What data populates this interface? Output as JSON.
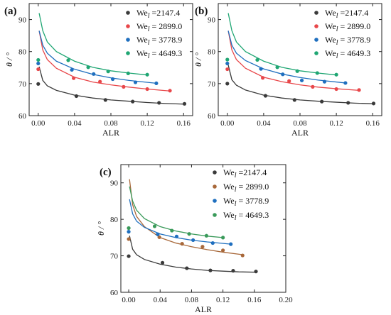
{
  "chart_data": [
    {
      "type": "scatter",
      "panel_label": "(a)",
      "xlabel": "ALR",
      "ylabel": "θ / °",
      "xlim": [
        -0.01,
        0.17
      ],
      "ylim": [
        60,
        95
      ],
      "xticks": [
        "0.00",
        "0.04",
        "0.08",
        "0.12",
        "0.16"
      ],
      "yticks": [
        "60",
        "70",
        "80",
        "90"
      ],
      "xtick_values": [
        0,
        0.04,
        0.08,
        0.12,
        0.16
      ],
      "ytick_values": [
        60,
        70,
        80,
        90
      ],
      "legend_position": "top-right",
      "series": [
        {
          "name": "We_l =2147.4",
          "color": "#3a3a3a",
          "points": [
            [
              0.0,
              69.9
            ],
            [
              0.042,
              66.1
            ],
            [
              0.074,
              64.9
            ],
            [
              0.104,
              64.4
            ],
            [
              0.133,
              64.0
            ],
            [
              0.161,
              63.7
            ]
          ],
          "curve": [
            [
              0.001,
              75.3
            ],
            [
              0.005,
              71.0
            ],
            [
              0.01,
              69.3
            ],
            [
              0.02,
              67.9
            ],
            [
              0.04,
              66.4
            ],
            [
              0.06,
              65.5
            ],
            [
              0.08,
              64.9
            ],
            [
              0.1,
              64.5
            ],
            [
              0.12,
              64.1
            ],
            [
              0.14,
              63.8
            ],
            [
              0.161,
              63.6
            ]
          ]
        },
        {
          "name": "We_l = 2899.0",
          "color": "#e8474a",
          "points": [
            [
              0.0,
              74.5
            ],
            [
              0.039,
              71.7
            ],
            [
              0.068,
              70.6
            ],
            [
              0.094,
              69.0
            ],
            [
              0.12,
              68.3
            ],
            [
              0.145,
              67.8
            ]
          ],
          "curve": [
            [
              0.001,
              86.5
            ],
            [
              0.005,
              80.5
            ],
            [
              0.01,
              77.5
            ],
            [
              0.02,
              74.8
            ],
            [
              0.04,
              72.0
            ],
            [
              0.06,
              70.5
            ],
            [
              0.08,
              69.6
            ],
            [
              0.1,
              68.9
            ],
            [
              0.12,
              68.3
            ],
            [
              0.145,
              67.7
            ]
          ]
        },
        {
          "name": "We_l = 3778.9",
          "color": "#1f6fbf",
          "points": [
            [
              0.0,
              76.3
            ],
            [
              0.037,
              74.3
            ],
            [
              0.061,
              73.0
            ],
            [
              0.082,
              71.4
            ],
            [
              0.107,
              70.4
            ],
            [
              0.13,
              70.1
            ]
          ],
          "curve": [
            [
              0.001,
              86.5
            ],
            [
              0.005,
              82.0
            ],
            [
              0.01,
              79.5
            ],
            [
              0.02,
              77.0
            ],
            [
              0.04,
              74.5
            ],
            [
              0.06,
              72.9
            ],
            [
              0.08,
              71.8
            ],
            [
              0.1,
              71.0
            ],
            [
              0.13,
              70.1
            ]
          ]
        },
        {
          "name": "We_l = 4649.3",
          "color": "#1fa673",
          "points": [
            [
              0.0,
              77.4
            ],
            [
              0.033,
              77.3
            ],
            [
              0.055,
              75.1
            ],
            [
              0.077,
              73.8
            ],
            [
              0.099,
              73.2
            ],
            [
              0.12,
              72.8
            ]
          ],
          "curve": [
            [
              0.001,
              92.0
            ],
            [
              0.005,
              86.5
            ],
            [
              0.01,
              83.0
            ],
            [
              0.02,
              80.0
            ],
            [
              0.04,
              77.0
            ],
            [
              0.06,
              75.1
            ],
            [
              0.08,
              74.0
            ],
            [
              0.1,
              73.3
            ],
            [
              0.12,
              72.7
            ]
          ]
        }
      ]
    },
    {
      "type": "scatter",
      "panel_label": "(b)",
      "xlabel": "ALR",
      "ylabel": "θ / °",
      "xlim": [
        -0.01,
        0.17
      ],
      "ylim": [
        60,
        95
      ],
      "xticks": [
        "0.00",
        "0.04",
        "0.08",
        "0.12",
        "0.16"
      ],
      "yticks": [
        "60",
        "70",
        "80",
        "90"
      ],
      "xtick_values": [
        0,
        0.04,
        0.08,
        0.12,
        0.16
      ],
      "ytick_values": [
        60,
        70,
        80,
        90
      ],
      "legend_position": "top-right",
      "series": [
        {
          "name": "We_l =2147.4",
          "color": "#3a3a3a",
          "points": [
            [
              0.0,
              70.0
            ],
            [
              0.042,
              66.2
            ],
            [
              0.074,
              64.9
            ],
            [
              0.104,
              64.4
            ],
            [
              0.133,
              64.0
            ],
            [
              0.161,
              63.8
            ]
          ],
          "curve": [
            [
              0.001,
              75.8
            ],
            [
              0.005,
              71.2
            ],
            [
              0.01,
              69.5
            ],
            [
              0.02,
              68.0
            ],
            [
              0.04,
              66.4
            ],
            [
              0.06,
              65.5
            ],
            [
              0.08,
              64.9
            ],
            [
              0.1,
              64.5
            ],
            [
              0.12,
              64.2
            ],
            [
              0.14,
              63.9
            ],
            [
              0.161,
              63.7
            ]
          ]
        },
        {
          "name": "We_l = 2899.0",
          "color": "#e8474a",
          "points": [
            [
              0.0,
              74.5
            ],
            [
              0.039,
              71.8
            ],
            [
              0.068,
              70.8
            ],
            [
              0.094,
              69.0
            ],
            [
              0.12,
              68.3
            ],
            [
              0.145,
              68.0
            ]
          ],
          "curve": [
            [
              0.001,
              86.5
            ],
            [
              0.005,
              80.5
            ],
            [
              0.01,
              77.5
            ],
            [
              0.02,
              74.8
            ],
            [
              0.04,
              72.0
            ],
            [
              0.06,
              70.6
            ],
            [
              0.08,
              69.6
            ],
            [
              0.1,
              68.9
            ],
            [
              0.12,
              68.4
            ],
            [
              0.145,
              67.9
            ]
          ]
        },
        {
          "name": "We_l = 3778.9",
          "color": "#1f6fbf",
          "points": [
            [
              0.0,
              76.3
            ],
            [
              0.037,
              74.6
            ],
            [
              0.061,
              72.9
            ],
            [
              0.082,
              71.0
            ],
            [
              0.107,
              70.6
            ],
            [
              0.13,
              70.2
            ]
          ],
          "curve": [
            [
              0.001,
              86.5
            ],
            [
              0.005,
              82.0
            ],
            [
              0.01,
              79.5
            ],
            [
              0.02,
              77.2
            ],
            [
              0.04,
              74.6
            ],
            [
              0.06,
              73.0
            ],
            [
              0.08,
              71.9
            ],
            [
              0.1,
              71.1
            ],
            [
              0.13,
              70.2
            ]
          ]
        },
        {
          "name": "We_l = 4649.3",
          "color": "#1fa673",
          "points": [
            [
              0.0,
              77.5
            ],
            [
              0.033,
              77.4
            ],
            [
              0.055,
              75.1
            ],
            [
              0.077,
              73.9
            ],
            [
              0.099,
              73.3
            ],
            [
              0.12,
              72.8
            ]
          ],
          "curve": [
            [
              0.001,
              92.0
            ],
            [
              0.005,
              86.5
            ],
            [
              0.01,
              83.0
            ],
            [
              0.02,
              80.0
            ],
            [
              0.04,
              77.0
            ],
            [
              0.06,
              75.1
            ],
            [
              0.08,
              74.0
            ],
            [
              0.1,
              73.3
            ],
            [
              0.12,
              72.7
            ]
          ]
        }
      ]
    },
    {
      "type": "scatter",
      "panel_label": "(c)",
      "xlabel": "ALR",
      "ylabel": "θ / °",
      "xlim": [
        -0.01,
        0.2
      ],
      "ylim": [
        60,
        95
      ],
      "xticks": [
        "0.00",
        "0.04",
        "0.08",
        "0.12",
        "0.16",
        "0.20"
      ],
      "yticks": [
        "60",
        "70",
        "80",
        "90"
      ],
      "xtick_values": [
        0,
        0.04,
        0.08,
        0.12,
        0.16,
        0.2
      ],
      "ytick_values": [
        60,
        70,
        80,
        90
      ],
      "legend_position": "top-right",
      "series": [
        {
          "name": "We_l =2147.4",
          "color": "#3a3a3a",
          "points": [
            [
              0.0,
              69.9
            ],
            [
              0.043,
              68.1
            ],
            [
              0.074,
              66.6
            ],
            [
              0.104,
              66.0
            ],
            [
              0.133,
              65.9
            ],
            [
              0.162,
              65.7
            ]
          ],
          "curve": [
            [
              0.001,
              75.5
            ],
            [
              0.005,
              71.8
            ],
            [
              0.01,
              70.3
            ],
            [
              0.02,
              69.0
            ],
            [
              0.04,
              67.7
            ],
            [
              0.06,
              66.9
            ],
            [
              0.08,
              66.4
            ],
            [
              0.1,
              66.0
            ],
            [
              0.12,
              65.8
            ],
            [
              0.14,
              65.6
            ],
            [
              0.162,
              65.5
            ]
          ]
        },
        {
          "name": "We_l = 2899.0",
          "color": "#a8683a",
          "points": [
            [
              0.0,
              74.6
            ],
            [
              0.039,
              75.1
            ],
            [
              0.068,
              73.3
            ],
            [
              0.094,
              72.5
            ],
            [
              0.12,
              71.5
            ],
            [
              0.145,
              70.1
            ]
          ],
          "curve": [
            [
              0.001,
              91.0
            ],
            [
              0.005,
              84.0
            ],
            [
              0.01,
              80.8
            ],
            [
              0.02,
              78.0
            ],
            [
              0.04,
              75.0
            ],
            [
              0.06,
              73.5
            ],
            [
              0.08,
              72.5
            ],
            [
              0.1,
              71.7
            ],
            [
              0.12,
              71.0
            ],
            [
              0.145,
              70.3
            ]
          ]
        },
        {
          "name": "We_l = 3778.9",
          "color": "#1f6fbf",
          "points": [
            [
              0.0,
              76.6
            ],
            [
              0.037,
              75.9
            ],
            [
              0.061,
              75.3
            ],
            [
              0.082,
              74.3
            ],
            [
              0.107,
              73.5
            ],
            [
              0.13,
              73.2
            ]
          ],
          "curve": [
            [
              0.001,
              85.5
            ],
            [
              0.005,
              81.5
            ],
            [
              0.01,
              79.5
            ],
            [
              0.02,
              77.8
            ],
            [
              0.04,
              76.0
            ],
            [
              0.06,
              75.0
            ],
            [
              0.08,
              74.3
            ],
            [
              0.1,
              73.8
            ],
            [
              0.13,
              73.2
            ]
          ]
        },
        {
          "name": "We_l = 4649.3",
          "color": "#3a9a5a",
          "points": [
            [
              0.0,
              77.6
            ],
            [
              0.033,
              78.1
            ],
            [
              0.055,
              76.9
            ],
            [
              0.077,
              76.0
            ],
            [
              0.099,
              75.5
            ],
            [
              0.12,
              75.0
            ]
          ],
          "curve": [
            [
              0.001,
              89.0
            ],
            [
              0.005,
              85.0
            ],
            [
              0.01,
              82.5
            ],
            [
              0.02,
              80.2
            ],
            [
              0.04,
              78.0
            ],
            [
              0.06,
              76.8
            ],
            [
              0.08,
              76.0
            ],
            [
              0.1,
              75.4
            ],
            [
              0.12,
              75.0
            ]
          ]
        }
      ]
    }
  ]
}
